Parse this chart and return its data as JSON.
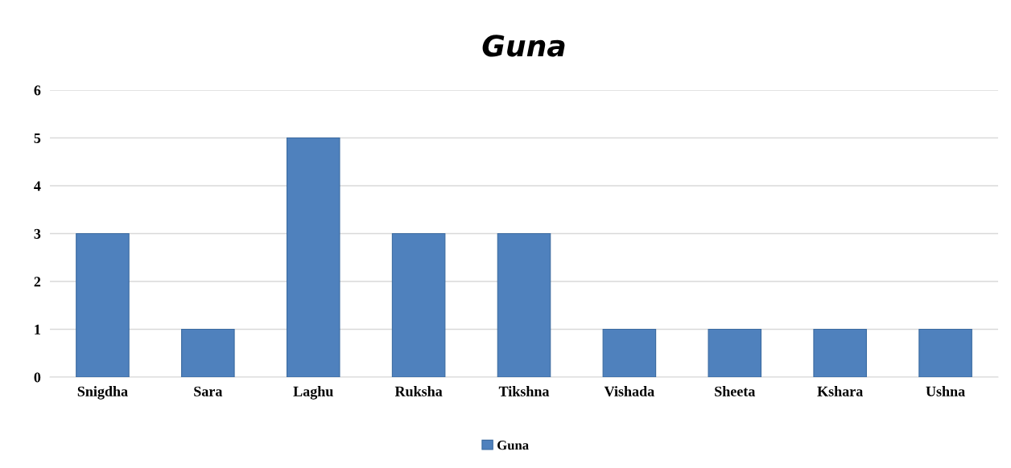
{
  "chart_data": {
    "type": "bar",
    "title": "Guna",
    "categories": [
      "Snigdha",
      "Sara",
      "Laghu",
      "Ruksha",
      "Tikshna",
      "Vishada",
      "Sheeta",
      "Kshara",
      "Ushna"
    ],
    "series": [
      {
        "name": "Guna",
        "color": "#4f81bd",
        "values": [
          3,
          1,
          5,
          3,
          3,
          1,
          1,
          1,
          1
        ]
      }
    ],
    "ylim": [
      0,
      6
    ],
    "yticks": [
      0,
      1,
      2,
      3,
      4,
      5,
      6
    ],
    "grid": "y",
    "legend": "bottom"
  }
}
